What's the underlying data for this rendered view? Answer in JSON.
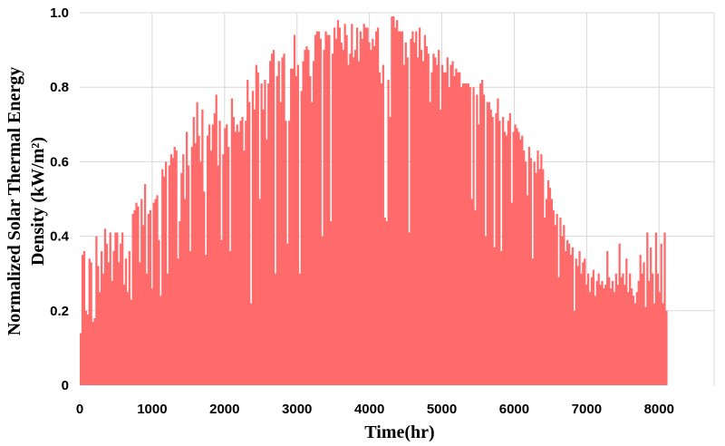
{
  "chart_data": {
    "type": "area",
    "title": "",
    "xlabel": "Time(hr)",
    "ylabel_line1": "Normalized Solar Thermal Energy",
    "ylabel_line2": "Density (kW/m²)",
    "xlim": [
      0,
      8760
    ],
    "ylim": [
      0,
      1.0
    ],
    "x_ticks": [
      0,
      1000,
      2000,
      3000,
      4000,
      5000,
      6000,
      7000,
      8000
    ],
    "y_ticks": [
      0,
      0.2,
      0.4,
      0.6,
      0.8,
      1.0
    ],
    "y_tick_labels": [
      "0",
      "0.2",
      "0.4",
      "0.6",
      "0.8",
      "1.0"
    ],
    "grid": true,
    "legend": "none",
    "color": "#ff6b6b",
    "series": [
      {
        "x_step": 24,
        "values": [
          0.14,
          0.35,
          0.36,
          0.2,
          0.19,
          0.34,
          0.33,
          0.17,
          0.18,
          0.4,
          0.32,
          0.25,
          0.36,
          0.3,
          0.42,
          0.38,
          0.33,
          0.41,
          0.28,
          0.36,
          0.41,
          0.41,
          0.33,
          0.38,
          0.41,
          0.27,
          0.34,
          0.25,
          0.36,
          0.23,
          0.46,
          0.47,
          0.49,
          0.48,
          0.33,
          0.5,
          0.43,
          0.54,
          0.3,
          0.46,
          0.47,
          0.26,
          0.49,
          0.5,
          0.51,
          0.39,
          0.24,
          0.58,
          0.56,
          0.6,
          0.3,
          0.59,
          0.62,
          0.61,
          0.64,
          0.63,
          0.34,
          0.44,
          0.57,
          0.62,
          0.5,
          0.68,
          0.59,
          0.36,
          0.64,
          0.72,
          0.65,
          0.76,
          0.67,
          0.6,
          0.74,
          0.52,
          0.35,
          0.67,
          0.7,
          0.63,
          0.7,
          0.73,
          0.78,
          0.59,
          0.71,
          0.39,
          0.62,
          0.69,
          0.7,
          0.64,
          0.36,
          0.77,
          0.72,
          0.68,
          0.7,
          0.68,
          0.71,
          0.72,
          0.63,
          0.71,
          0.82,
          0.76,
          0.22,
          0.79,
          0.74,
          0.86,
          0.84,
          0.5,
          0.81,
          0.74,
          0.82,
          0.66,
          0.81,
          0.87,
          0.89,
          0.9,
          0.3,
          0.83,
          0.87,
          0.76,
          0.88,
          0.89,
          0.71,
          0.38,
          0.71,
          0.85,
          0.85,
          0.94,
          0.83,
          0.86,
          0.3,
          0.79,
          0.87,
          0.9,
          0.91,
          0.9,
          0.83,
          0.76,
          0.87,
          0.94,
          0.95,
          0.95,
          0.93,
          0.4,
          0.9,
          0.95,
          0.94,
          0.94,
          0.44,
          0.89,
          0.96,
          0.93,
          0.98,
          0.96,
          0.92,
          0.9,
          0.97,
          0.94,
          0.86,
          0.89,
          0.97,
          0.88,
          0.9,
          0.96,
          0.87,
          0.95,
          0.93,
          0.97,
          0.96,
          0.96,
          0.92,
          0.9,
          0.93,
          0.91,
          0.95,
          0.96,
          0.84,
          0.81,
          0.86,
          0.45,
          0.44,
          0.82,
          0.72,
          0.99,
          0.99,
          0.96,
          0.98,
          0.95,
          0.95,
          0.95,
          0.86,
          0.92,
          0.88,
          0.41,
          0.93,
          0.95,
          0.92,
          0.95,
          0.88,
          0.96,
          0.9,
          0.87,
          0.94,
          0.91,
          0.89,
          0.76,
          0.84,
          0.89,
          0.88,
          0.86,
          0.9,
          0.74,
          0.86,
          0.84,
          0.84,
          0.88,
          0.8,
          0.86,
          0.87,
          0.83,
          0.85,
          0.84,
          0.84,
          0.8,
          0.81,
          0.81,
          0.81,
          0.81,
          0.8,
          0.5,
          0.8,
          0.47,
          0.78,
          0.7,
          0.81,
          0.82,
          0.78,
          0.4,
          0.76,
          0.76,
          0.74,
          0.72,
          0.37,
          0.73,
          0.77,
          0.71,
          0.36,
          0.72,
          0.68,
          0.67,
          0.71,
          0.73,
          0.49,
          0.68,
          0.7,
          0.69,
          0.68,
          0.66,
          0.67,
          0.63,
          0.6,
          0.51,
          0.64,
          0.61,
          0.34,
          0.6,
          0.57,
          0.63,
          0.58,
          0.62,
          0.58,
          0.45,
          0.5,
          0.55,
          0.53,
          0.5,
          0.47,
          0.43,
          0.46,
          0.29,
          0.45,
          0.4,
          0.43,
          0.36,
          0.39,
          0.38,
          0.35,
          0.37,
          0.2,
          0.34,
          0.32,
          0.36,
          0.3,
          0.33,
          0.34,
          0.27,
          0.3,
          0.25,
          0.29,
          0.31,
          0.24,
          0.28,
          0.3,
          0.27,
          0.28,
          0.26,
          0.27,
          0.36,
          0.29,
          0.26,
          0.28,
          0.25,
          0.3,
          0.27,
          0.38,
          0.29,
          0.3,
          0.27,
          0.34,
          0.25,
          0.3,
          0.26,
          0.24,
          0.22,
          0.25,
          0.28,
          0.35,
          0.3,
          0.33,
          0.21,
          0.41,
          0.28,
          0.37,
          0.3,
          0.22,
          0.41,
          0.3,
          0.25,
          0.38,
          0.22,
          0.41,
          0.2
        ]
      }
    ]
  }
}
